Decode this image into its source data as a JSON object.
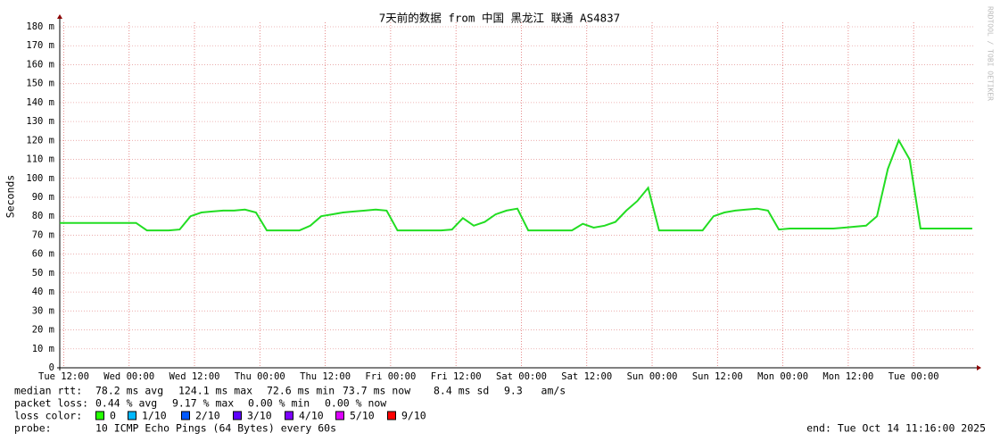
{
  "chart_data": {
    "type": "line",
    "title": "7天前的数据 from 中国 黑龙江 联通 AS4837",
    "y_label": "Seconds",
    "watermark": "RRDTOOL / TOBI OETIKER",
    "color": "#22dd22",
    "grid": true,
    "xlim": [
      0,
      168
    ],
    "xticks": [
      {
        "value": 0.73,
        "label": "Tue 12:00"
      },
      {
        "value": 12.73,
        "label": "Wed 00:00"
      },
      {
        "value": 24.73,
        "label": "Wed 12:00"
      },
      {
        "value": 36.73,
        "label": "Thu 00:00"
      },
      {
        "value": 48.73,
        "label": "Thu 12:00"
      },
      {
        "value": 60.73,
        "label": "Fri 00:00"
      },
      {
        "value": 72.73,
        "label": "Fri 12:00"
      },
      {
        "value": 84.73,
        "label": "Sat 00:00"
      },
      {
        "value": 96.73,
        "label": "Sat 12:00"
      },
      {
        "value": 108.73,
        "label": "Sun 00:00"
      },
      {
        "value": 120.73,
        "label": "Sun 12:00"
      },
      {
        "value": 132.73,
        "label": "Mon 00:00"
      },
      {
        "value": 144.73,
        "label": "Mon 12:00"
      },
      {
        "value": 156.73,
        "label": "Tue 00:00"
      }
    ],
    "ylim": [
      0,
      180
    ],
    "yticks": [
      0,
      {
        "value": 10,
        "label": "10 m"
      },
      {
        "value": 20,
        "label": "20 m"
      },
      {
        "value": 30,
        "label": "30 m"
      },
      {
        "value": 40,
        "label": "40 m"
      },
      {
        "value": 50,
        "label": "50 m"
      },
      {
        "value": 60,
        "label": "60 m"
      },
      {
        "value": 70,
        "label": "70 m"
      },
      {
        "value": 80,
        "label": "80 m"
      },
      {
        "value": 90,
        "label": "90 m"
      },
      {
        "value": 100,
        "label": "100 m"
      },
      {
        "value": 110,
        "label": "110 m"
      },
      {
        "value": 120,
        "label": "120 m"
      },
      {
        "value": 130,
        "label": "130 m"
      },
      {
        "value": 140,
        "label": "140 m"
      },
      {
        "value": 150,
        "label": "150 m"
      },
      {
        "value": 160,
        "label": "160 m"
      },
      {
        "value": 170,
        "label": "170 m"
      },
      {
        "value": 180,
        "label": "180 m"
      }
    ],
    "x": [
      0,
      2,
      4,
      6,
      8,
      10,
      12,
      14,
      16,
      18,
      20,
      22,
      24,
      26,
      28,
      30,
      32,
      34,
      36,
      38,
      40,
      42,
      44,
      46,
      48,
      50,
      52,
      54,
      56,
      58,
      60,
      62,
      64,
      66,
      68,
      70,
      72,
      74,
      76,
      78,
      80,
      82,
      84,
      86,
      88,
      90,
      92,
      94,
      96,
      98,
      100,
      102,
      104,
      106,
      108,
      110,
      112,
      114,
      116,
      118,
      120,
      122,
      124,
      126,
      128,
      130,
      132,
      134,
      136,
      138,
      140,
      142,
      144,
      146,
      148,
      150,
      152,
      154,
      156,
      158,
      160,
      162,
      164,
      166,
      167.5
    ],
    "values": [
      76.5,
      76.5,
      76.5,
      76.5,
      76.5,
      76.5,
      76.5,
      76.5,
      72.5,
      72.5,
      72.5,
      73,
      80,
      82,
      82.5,
      83,
      83,
      83.5,
      82,
      72.5,
      72.5,
      72.5,
      72.5,
      75,
      80,
      81,
      82,
      82.5,
      83,
      83.5,
      83,
      72.5,
      72.5,
      72.5,
      72.5,
      72.5,
      73,
      79,
      75,
      77,
      81,
      83,
      84,
      72.5,
      72.5,
      72.5,
      72.5,
      72.5,
      76,
      74,
      75,
      77,
      83,
      88,
      95,
      72.5,
      72.5,
      72.5,
      72.5,
      72.5,
      80,
      82,
      83,
      83.5,
      84,
      83,
      73,
      73.5,
      73.5,
      73.5,
      73.5,
      73.5,
      74,
      74.5,
      75,
      80,
      105,
      120,
      110,
      73.5,
      73.5,
      73.5,
      73.5,
      73.5,
      73.5
    ],
    "median_rtt": [
      "median rtt:",
      "78.2 ms avg",
      "124.1 ms max",
      "72.6 ms min",
      "73.7 ms now",
      "8.4 ms sd",
      "9.3   am/s"
    ],
    "packet_loss": [
      "packet loss:",
      "0.44 % avg",
      "9.17 % max",
      "0.00 % min",
      "0.00 % now"
    ],
    "loss_color_label": "loss color:",
    "loss_colors": [
      {
        "label": "0",
        "color": "#26ff00"
      },
      {
        "label": "1/10",
        "color": "#00b8ff"
      },
      {
        "label": "2/10",
        "color": "#0059ff"
      },
      {
        "label": "3/10",
        "color": "#5e00ff"
      },
      {
        "label": "4/10",
        "color": "#7e00ff"
      },
      {
        "label": "5/10",
        "color": "#dd00ff"
      },
      {
        "label": "9/10",
        "color": "#ff0000"
      }
    ],
    "probe": [
      "probe:",
      "10 ICMP Echo Pings (64 Bytes) every 60s"
    ],
    "end": "end: Tue Oct 14 11:16:00 2025"
  }
}
